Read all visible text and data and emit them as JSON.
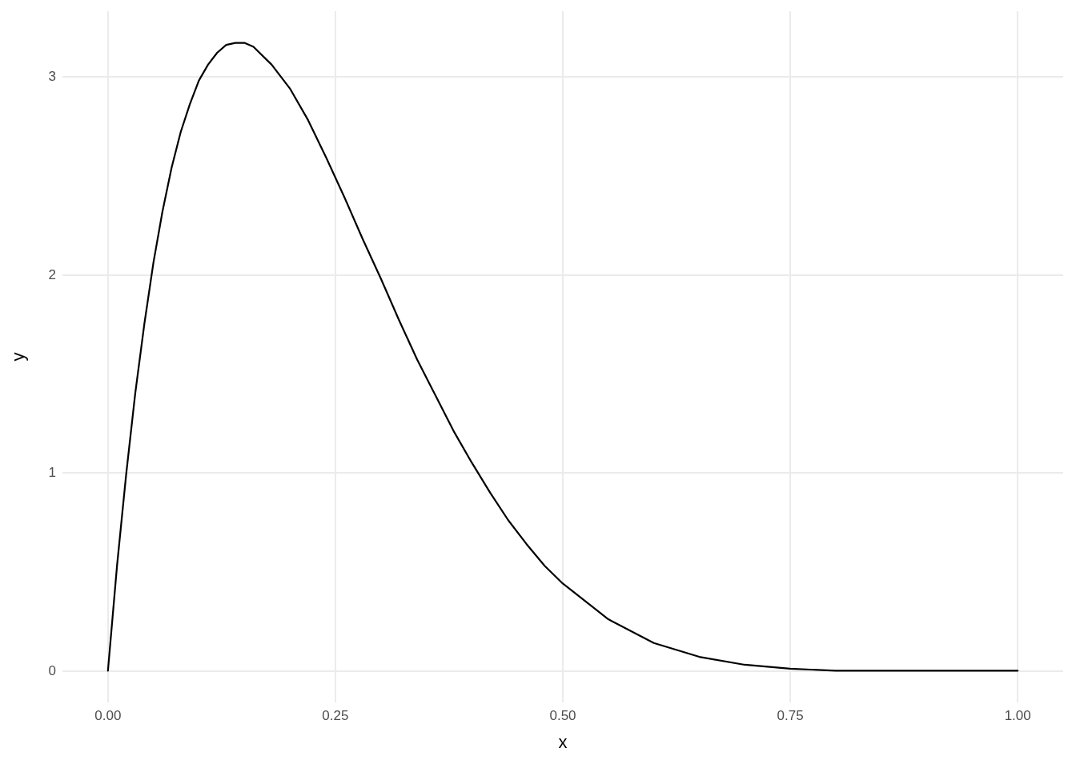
{
  "chart_data": {
    "type": "line",
    "xlabel": "x",
    "ylabel": "y",
    "x": [
      0,
      0.01,
      0.02,
      0.03,
      0.04,
      0.05,
      0.06,
      0.07,
      0.08,
      0.09,
      0.1,
      0.11,
      0.12,
      0.13,
      0.14,
      0.15,
      0.16,
      0.18,
      0.2,
      0.22,
      0.24,
      0.26,
      0.28,
      0.3,
      0.32,
      0.34,
      0.36,
      0.38,
      0.4,
      0.42,
      0.44,
      0.46,
      0.48,
      0.5,
      0.55,
      0.6,
      0.65,
      0.7,
      0.75,
      0.8,
      0.85,
      0.9,
      1
    ],
    "series": [
      {
        "color": "#000000",
        "values": [
          0,
          0.53,
          0.99,
          1.4,
          1.75,
          2.06,
          2.32,
          2.54,
          2.72,
          2.86,
          2.98,
          3.06,
          3.12,
          3.16,
          3.17,
          3.17,
          3.15,
          3.06,
          2.94,
          2.78,
          2.59,
          2.39,
          2.18,
          1.98,
          1.77,
          1.57,
          1.39,
          1.21,
          1.05,
          0.9,
          0.76,
          0.64,
          0.53,
          0.44,
          0.26,
          0.14,
          0.07,
          0.03,
          0.01,
          0,
          0,
          0,
          0
        ]
      }
    ],
    "xlim": [
      -0.05,
      1.05
    ],
    "xticks": [
      {
        "value": 0,
        "label": "0.00"
      },
      {
        "value": 0.25,
        "label": "0.25"
      },
      {
        "value": 0.5,
        "label": "0.50"
      },
      {
        "value": 0.75,
        "label": "0.75"
      },
      {
        "value": 1,
        "label": "1.00"
      }
    ],
    "ylim": [
      -0.16,
      3.33
    ],
    "yticks": [
      0,
      1,
      2,
      3
    ],
    "grid": true,
    "marker": "none",
    "line_style": "solid"
  }
}
